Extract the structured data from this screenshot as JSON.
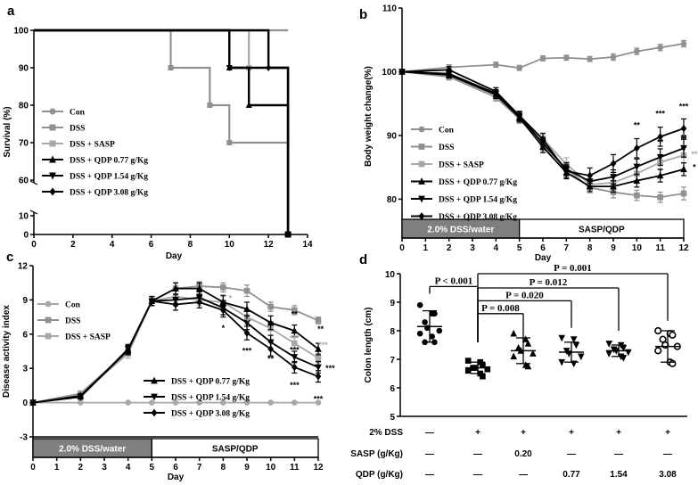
{
  "panel_labels": [
    "a",
    "b",
    "c",
    "d"
  ],
  "colors": {
    "con": "#909090",
    "dss": "#909090",
    "sasp": "#a8a8a8",
    "qdp": "#000000",
    "box_dark": "#7f7f7f"
  },
  "chart_data": [
    {
      "id": "a",
      "type": "line",
      "step": true,
      "xlabel": "Day",
      "ylabel": "Survival (%)",
      "xlim": [
        0,
        14
      ],
      "xticks": [
        0,
        2,
        4,
        6,
        8,
        10,
        12,
        14
      ],
      "ylim_upper": [
        60,
        100
      ],
      "yticks_upper": [
        60,
        70,
        80,
        90,
        100
      ],
      "yticks_lower": [
        0,
        10
      ],
      "axis_break": true,
      "legend": [
        "Con",
        "DSS",
        "DSS + SASP",
        "DSS + QDP 0.77 g/Kg",
        "DSS + QDP 1.54 g/Kg",
        "DSS + QDP 3.08 g/Kg"
      ],
      "series": [
        {
          "name": "Con",
          "x": [
            0,
            13
          ],
          "y": [
            100,
            100
          ],
          "color": "#909090",
          "marker": "circle"
        },
        {
          "name": "DSS",
          "x": [
            0,
            7,
            9,
            10,
            13
          ],
          "y": [
            100,
            90,
            80,
            70,
            0
          ],
          "color": "#909090",
          "marker": "square"
        },
        {
          "name": "DSS + SASP",
          "x": [
            0,
            11,
            13
          ],
          "y": [
            100,
            90,
            0
          ],
          "color": "#a8a8a8",
          "marker": "square"
        },
        {
          "name": "DSS + QDP 0.77 g/Kg",
          "x": [
            0,
            10,
            11,
            13
          ],
          "y": [
            100,
            90,
            80,
            0
          ],
          "color": "#000000",
          "marker": "triangle-up"
        },
        {
          "name": "DSS + QDP 1.54 g/Kg",
          "x": [
            0,
            10,
            13
          ],
          "y": [
            100,
            90,
            0
          ],
          "color": "#000000",
          "marker": "triangle-down"
        },
        {
          "name": "DSS + QDP 3.08 g/Kg",
          "x": [
            0,
            12,
            13
          ],
          "y": [
            100,
            90,
            0
          ],
          "color": "#000000",
          "marker": "diamond"
        }
      ]
    },
    {
      "id": "b",
      "type": "line",
      "xlabel": "Day",
      "ylabel": "Body weight change(%)",
      "xlim": [
        0,
        12
      ],
      "xticks": [
        0,
        1,
        2,
        3,
        4,
        5,
        6,
        7,
        8,
        9,
        10,
        11,
        12
      ],
      "ylim": [
        76,
        110
      ],
      "yticks": [
        80,
        90,
        100,
        110
      ],
      "legend": [
        "Con",
        "DSS",
        "DSS + SASP",
        "DSS + QDP 0.77 g/Kg",
        "DSS + QDP 1.54 g/Kg",
        "DSS + QDP 3.08 g/Kg"
      ],
      "phases": [
        {
          "label": "2.0% DSS/water",
          "from": 0,
          "to": 5
        },
        {
          "label": "SASP/QDP",
          "from": 5,
          "to": 12
        }
      ],
      "x": [
        0,
        2,
        4,
        5,
        6,
        7,
        8,
        9,
        10,
        11,
        12
      ],
      "series": [
        {
          "name": "Con",
          "color": "#909090",
          "marker": "circle",
          "values": [
            100,
            100.7,
            101.1,
            100.6,
            102.1,
            102.2,
            102.0,
            102.3,
            103.2,
            103.8,
            104.4
          ],
          "err": [
            0.3,
            0.4,
            0.4,
            0.4,
            0.4,
            0.4,
            0.4,
            0.5,
            0.5,
            0.5,
            0.5
          ]
        },
        {
          "name": "DSS",
          "color": "#909090",
          "marker": "square",
          "values": [
            100,
            99.2,
            96.0,
            92.6,
            88.5,
            84.8,
            81.8,
            81.1,
            80.6,
            80.3,
            80.9
          ],
          "err": [
            0.3,
            0.5,
            0.6,
            0.7,
            0.9,
            1.0,
            0.8,
            0.9,
            0.8,
            0.8,
            1.0
          ]
        },
        {
          "name": "DSS + SASP",
          "color": "#a8a8a8",
          "marker": "square",
          "values": [
            100,
            99.4,
            96.3,
            92.9,
            89.5,
            85.5,
            82.3,
            82.6,
            84.0,
            85.8,
            86.9
          ],
          "err": [
            0.3,
            0.5,
            0.6,
            0.7,
            0.9,
            1.0,
            0.9,
            1.0,
            1.1,
            1.2,
            1.2
          ]
        },
        {
          "name": "DSS + QDP 0.77 g/Kg",
          "color": "#000000",
          "marker": "triangle-up",
          "values": [
            100,
            99.5,
            96.4,
            92.8,
            88.2,
            84.2,
            82.0,
            82.0,
            82.9,
            83.7,
            84.7
          ],
          "err": [
            0.3,
            0.5,
            0.6,
            0.7,
            0.9,
            1.0,
            0.8,
            0.9,
            1.0,
            1.0,
            1.0
          ]
        },
        {
          "name": "DSS + QDP 1.54 g/Kg",
          "color": "#000000",
          "marker": "triangle-down",
          "values": [
            100,
            99.7,
            96.6,
            93.0,
            88.8,
            84.7,
            82.8,
            83.5,
            85.1,
            86.6,
            88.0
          ],
          "err": [
            0.3,
            0.5,
            0.6,
            0.7,
            0.9,
            1.0,
            0.9,
            1.1,
            1.2,
            1.3,
            1.4
          ]
        },
        {
          "name": "DSS + QDP 3.08 g/Kg",
          "color": "#000000",
          "marker": "diamond",
          "values": [
            100,
            100.3,
            96.9,
            93.1,
            89.4,
            84.4,
            83.7,
            85.6,
            88.0,
            89.8,
            91.1
          ],
          "err": [
            0.3,
            0.5,
            0.6,
            0.7,
            0.9,
            1.0,
            1.2,
            1.4,
            1.5,
            1.5,
            1.5
          ]
        }
      ],
      "annotations": [
        {
          "text": "**",
          "x": 10,
          "y": 91.2,
          "color": "#000000"
        },
        {
          "text": "***",
          "x": 11,
          "y": 93.0,
          "color": "#000000"
        },
        {
          "text": "***",
          "x": 12,
          "y": 94.1,
          "color": "#000000"
        },
        {
          "text": "**",
          "x": 11,
          "y": 88.5,
          "color": "#000000"
        },
        {
          "text": "**",
          "x": 12,
          "y": 89.2,
          "color": "#000000"
        },
        {
          "text": "**",
          "x": 12.45,
          "y": 86.6,
          "color": "#a8a8a8"
        },
        {
          "text": "*",
          "x": 12.45,
          "y": 84.6,
          "color": "#000000"
        }
      ]
    },
    {
      "id": "c",
      "type": "line",
      "xlabel": "Day",
      "ylabel": "Disease activity index",
      "xlim": [
        0,
        12
      ],
      "xticks": [
        0,
        1,
        2,
        3,
        4,
        5,
        6,
        7,
        8,
        9,
        10,
        11,
        12
      ],
      "ylim": [
        -3,
        12
      ],
      "yticks": [
        -3,
        0,
        3,
        6,
        9,
        12
      ],
      "legend": [
        "Con",
        "DSS",
        "DSS + SASP",
        "DSS + QDP 0.77 g/Kg",
        "DSS + QDP 1.54 g/Kg",
        "DSS + QDP 3.08 g/Kg"
      ],
      "phases": [
        {
          "label": "2.0% DSS/water",
          "from": 0,
          "to": 5
        },
        {
          "label": "SASP/QDP",
          "from": 5,
          "to": 12
        }
      ],
      "x": [
        0,
        2,
        4,
        5,
        6,
        7,
        8,
        9,
        10,
        11,
        12
      ],
      "series": [
        {
          "name": "Con",
          "color": "#a8a8a8",
          "marker": "circle",
          "values": [
            0,
            0,
            0,
            0,
            0,
            0,
            0,
            0,
            0,
            0,
            0
          ],
          "err": [
            0,
            0,
            0,
            0,
            0,
            0,
            0,
            0,
            0,
            0,
            0
          ]
        },
        {
          "name": "DSS",
          "color": "#909090",
          "marker": "square",
          "values": [
            0,
            0.8,
            4.5,
            8.9,
            10.0,
            10.2,
            10.1,
            9.8,
            8.4,
            8.1,
            7.2
          ],
          "err": [
            0,
            0.2,
            0.4,
            0.4,
            0.5,
            0.4,
            0.4,
            0.5,
            0.4,
            0.4,
            0.3
          ]
        },
        {
          "name": "DSS + SASP",
          "color": "#a8a8a8",
          "marker": "square",
          "values": [
            0,
            0.7,
            4.3,
            8.9,
            9.3,
            9.0,
            8.8,
            7.5,
            6.5,
            5.2,
            3.9
          ],
          "err": [
            0,
            0.2,
            0.4,
            0.4,
            0.5,
            0.5,
            0.5,
            0.6,
            0.6,
            0.5,
            0.4
          ]
        },
        {
          "name": "DSS + QDP 0.77 g/Kg",
          "color": "#000000",
          "marker": "triangle-up",
          "values": [
            0,
            0.6,
            4.6,
            8.9,
            10.0,
            10.0,
            8.8,
            8.2,
            7.0,
            6.3,
            4.7
          ],
          "err": [
            0,
            0.2,
            0.4,
            0.4,
            0.5,
            0.5,
            0.6,
            0.6,
            0.6,
            0.5,
            0.5
          ]
        },
        {
          "name": "DSS + QDP 1.54 g/Kg",
          "color": "#000000",
          "marker": "triangle-down",
          "values": [
            0,
            0.5,
            4.7,
            8.9,
            9.0,
            9.2,
            8.3,
            7.0,
            5.3,
            4.0,
            3.1
          ],
          "err": [
            0,
            0.2,
            0.4,
            0.4,
            0.5,
            0.5,
            0.6,
            0.6,
            0.6,
            0.5,
            0.5
          ]
        },
        {
          "name": "DSS + QDP 3.08 g/Kg",
          "color": "#000000",
          "marker": "diamond",
          "values": [
            0,
            0.5,
            4.6,
            8.9,
            8.6,
            8.8,
            8.1,
            6.1,
            4.7,
            3.1,
            2.3
          ],
          "err": [
            0,
            0.2,
            0.4,
            0.4,
            0.5,
            0.5,
            0.6,
            0.6,
            0.6,
            0.5,
            0.5
          ]
        }
      ],
      "annotations": [
        {
          "text": "*",
          "x": 8.3,
          "y": 8.9,
          "color": "#a8a8a8"
        },
        {
          "text": "**",
          "x": 9.1,
          "y": 6.9,
          "color": "#a8a8a8"
        },
        {
          "text": "*",
          "x": 8,
          "y": 6.3,
          "color": "#000000"
        },
        {
          "text": "***",
          "x": 9,
          "y": 4.3,
          "color": "#000000"
        },
        {
          "text": "**",
          "x": 10,
          "y": 3.6,
          "color": "#000000"
        },
        {
          "text": "**",
          "x": 10,
          "y": 6.6,
          "color": "#000000"
        },
        {
          "text": "**",
          "x": 11,
          "y": 7.5,
          "color": "#000000"
        },
        {
          "text": "***",
          "x": 11,
          "y": 5.4,
          "color": "#a8a8a8"
        },
        {
          "text": "***",
          "x": 11,
          "y": 4.4,
          "color": "#000000"
        },
        {
          "text": "***",
          "x": 11,
          "y": 1.3,
          "color": "#000000"
        },
        {
          "text": "**",
          "x": 12.1,
          "y": 6.2,
          "color": "#000000"
        },
        {
          "text": "***",
          "x": 12.2,
          "y": 4.8,
          "color": "#a8a8a8"
        },
        {
          "text": "***",
          "x": 12.5,
          "y": 2.8,
          "color": "#000000"
        },
        {
          "text": "***",
          "x": 12,
          "y": 0.1,
          "color": "#000000"
        }
      ]
    },
    {
      "id": "d",
      "type": "scatter",
      "ylabel": "Colon length (cm)",
      "ylim": [
        5,
        10
      ],
      "yticks": [
        5,
        6,
        7,
        8,
        9,
        10
      ],
      "groups": [
        {
          "marker": "circle",
          "mean": 8.15,
          "sd": 0.55,
          "points": [
            8.9,
            8.6,
            8.6,
            8.3,
            8.1,
            8.0,
            7.9,
            7.8,
            7.6,
            7.6
          ]
        },
        {
          "marker": "square",
          "mean": 6.7,
          "sd": 0.2,
          "points": [
            6.95,
            6.9,
            6.8,
            6.7,
            6.7,
            6.65,
            6.6,
            6.5,
            6.4
          ]
        },
        {
          "marker": "triangle-up",
          "mean": 7.3,
          "sd": 0.45,
          "points": [
            7.9,
            7.7,
            7.55,
            7.4,
            7.3,
            7.2,
            7.1,
            6.8,
            6.75
          ]
        },
        {
          "marker": "triangle-down",
          "mean": 7.25,
          "sd": 0.35,
          "points": [
            7.75,
            7.7,
            7.5,
            7.3,
            7.2,
            7.1,
            6.9,
            6.85
          ]
        },
        {
          "marker": "triangle-down",
          "mean": 7.3,
          "sd": 0.2,
          "points": [
            7.55,
            7.5,
            7.4,
            7.35,
            7.3,
            7.25,
            7.2,
            7.1,
            7.05
          ]
        },
        {
          "marker": "circle-open",
          "mean": 7.45,
          "sd": 0.55,
          "points": [
            8.0,
            7.9,
            7.85,
            7.7,
            7.5,
            7.45,
            7.3,
            6.9,
            6.85
          ]
        }
      ],
      "comparisons": [
        {
          "text": "P < 0.001",
          "from": 0,
          "to": 1,
          "y": 9.55
        },
        {
          "text": "P = 0.008",
          "from": 1,
          "to": 2,
          "y": 8.6
        },
        {
          "text": "P = 0.020",
          "from": 1,
          "to": 3,
          "y": 9.05
        },
        {
          "text": "P = 0.012",
          "from": 1,
          "to": 4,
          "y": 9.5
        },
        {
          "text": "P = 0.001",
          "from": 1,
          "to": 5,
          "y": 10.0
        }
      ],
      "treatment_rows": [
        {
          "label": "2% DSS",
          "values": [
            "—",
            "+",
            "+",
            "+",
            "+",
            "+"
          ]
        },
        {
          "label": "SASP (g/Kg)",
          "values": [
            "—",
            "—",
            "0.20",
            "—",
            "—",
            "—"
          ]
        },
        {
          "label": "QDP (g/Kg)",
          "values": [
            "—",
            "—",
            "—",
            "0.77",
            "1.54",
            "3.08"
          ]
        }
      ]
    }
  ]
}
